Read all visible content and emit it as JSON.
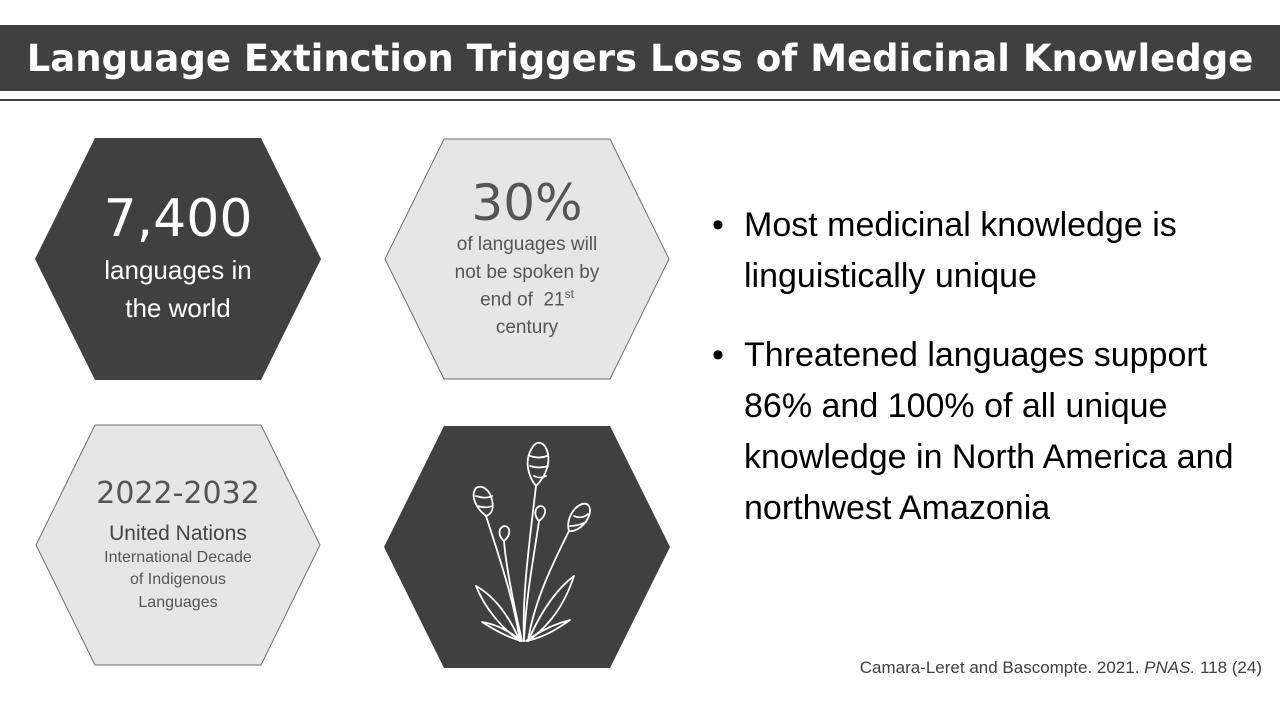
{
  "title": "Language Extinction Triggers Loss of Medicinal Knowledge",
  "hexagons": {
    "languages": {
      "number": "7,400",
      "line1": "languages in",
      "line2": "the world"
    },
    "extinction": {
      "number": "30%",
      "line1": "of languages will",
      "line2": "not be spoken by",
      "line3_prefix": "end of  21",
      "line3_sup": "st",
      "line4": "century"
    },
    "decade": {
      "years": "2022-2032",
      "org": "United Nations",
      "line1": "International Decade",
      "line2": "of Indigenous",
      "line3": "Languages"
    },
    "plant": {
      "icon": "plant-icon"
    }
  },
  "bullets": [
    "Most medicinal knowledge is linguistically unique",
    "Threatened languages support 86% and 100% of all unique knowledge in North America and northwest Amazonia"
  ],
  "bullet_symbol": "•",
  "citation": {
    "authors": "Camara-Leret and Bascompte. 2021.",
    "journal": "PNAS.",
    "volume": "118 (24)"
  },
  "colors": {
    "dark": "#404040",
    "light": "#e6e6e6",
    "light_border": "#707070"
  }
}
